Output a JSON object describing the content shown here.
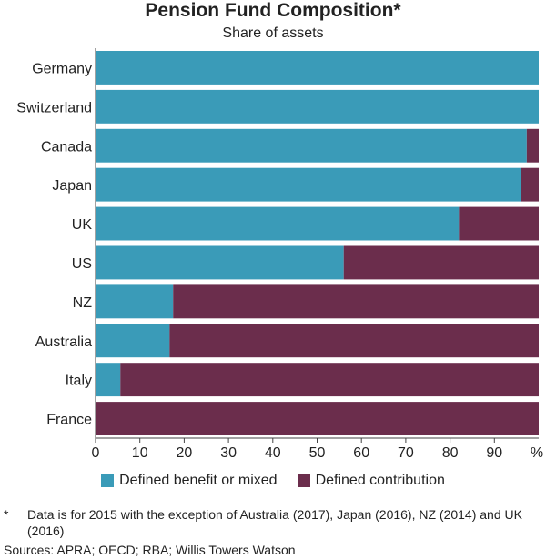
{
  "colors": {
    "defined_benefit": "#3a9bb8",
    "defined_contribution": "#6b2d4c",
    "grid": "#8a8a8a",
    "axis": "#444444"
  },
  "chart_data": {
    "type": "bar",
    "orientation": "horizontal",
    "stacked": true,
    "title": "Pension Fund Composition*",
    "subtitle": "Share of assets",
    "unit": "%",
    "categories": [
      "Germany",
      "Switzerland",
      "Canada",
      "Japan",
      "UK",
      "US",
      "NZ",
      "Australia",
      "Italy",
      "France"
    ],
    "series": [
      {
        "name": "Defined benefit or mixed",
        "color": "#3a9bb8",
        "values": [
          100,
          100,
          97.3,
          96,
          82,
          56,
          17.5,
          16.7,
          5.6,
          0
        ]
      },
      {
        "name": "Defined contribution",
        "color": "#6b2d4c",
        "values": [
          0,
          0,
          2.7,
          4,
          18,
          44,
          82.5,
          83.3,
          94.4,
          100
        ]
      }
    ],
    "xlim": [
      0,
      100
    ],
    "xticks": [
      0,
      10,
      20,
      30,
      40,
      50,
      60,
      70,
      80,
      90
    ],
    "grid": false,
    "legend_position": "bottom"
  },
  "footnote": {
    "mark": "*",
    "text": "Data is for 2015 with the exception of Australia (2017), Japan (2016), NZ (2014) and UK (2016)"
  },
  "sources": "Sources: APRA; OECD; RBA; Willis Towers Watson"
}
